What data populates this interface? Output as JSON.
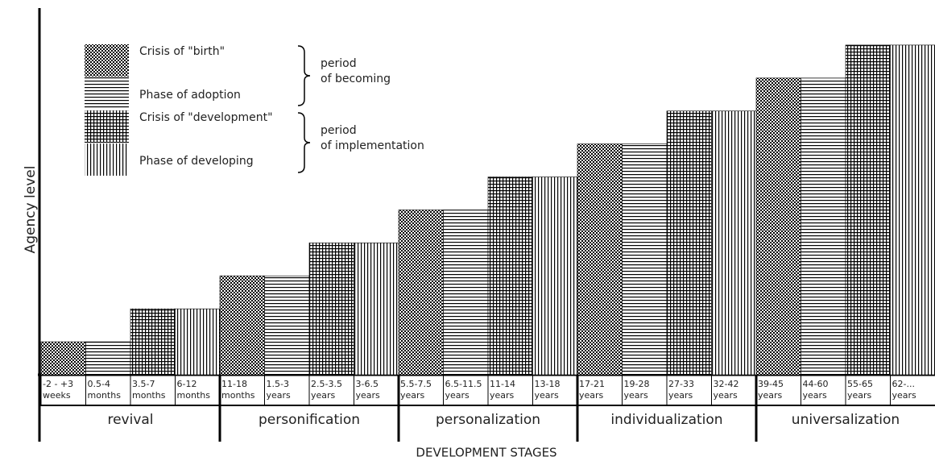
{
  "chart_data": {
    "type": "bar",
    "y_label": "Agency level",
    "x_label": "DEVELOPMENT STAGES",
    "ylim": [
      0,
      11
    ],
    "categories": [
      "-2 - +3\nweeks",
      "0.5-4\nmonths",
      "3.5-7\nmonths",
      "6-12\nmonths",
      "11-18\nmonths",
      "1.5-3\nyears",
      "2.5-3.5\nyears",
      "3-6.5\nyears",
      "5.5-7.5\nyears",
      "6.5-11.5\nyears",
      "11-14\nyears",
      "13-18\nyears",
      "17-21\nyears",
      "19-28\nyears",
      "27-33\nyears",
      "32-42\nyears",
      "39-45\nyears",
      "44-60\nyears",
      "55-65\nyears",
      "62-...\nyears"
    ],
    "series": [
      {
        "name": "Crisis of \"birth\"",
        "pattern": "checker",
        "values": [
          1,
          null,
          null,
          null,
          3,
          null,
          null,
          null,
          5,
          null,
          null,
          null,
          7,
          null,
          null,
          null,
          9,
          null,
          null,
          null
        ]
      },
      {
        "name": "Phase of adoption",
        "pattern": "horizontal",
        "values": [
          null,
          1,
          null,
          null,
          null,
          3,
          null,
          null,
          null,
          5,
          null,
          null,
          null,
          7,
          null,
          null,
          null,
          9,
          null,
          null
        ]
      },
      {
        "name": "Crisis of \"development\"",
        "pattern": "grid",
        "values": [
          null,
          null,
          2,
          null,
          null,
          null,
          4,
          null,
          null,
          null,
          6,
          null,
          null,
          null,
          8,
          null,
          null,
          null,
          10,
          null
        ]
      },
      {
        "name": "Phase of developing",
        "pattern": "vertical",
        "values": [
          null,
          null,
          null,
          2,
          null,
          null,
          null,
          4,
          null,
          null,
          null,
          6,
          null,
          null,
          null,
          8,
          null,
          null,
          null,
          10
        ]
      }
    ],
    "legend_groups": [
      {
        "label": "period\nof becoming",
        "series": [
          0,
          1
        ]
      },
      {
        "label": "period\nof implementation",
        "series": [
          2,
          3
        ]
      }
    ],
    "groups": [
      {
        "name": "revival",
        "count": 4
      },
      {
        "name": "personification",
        "count": 4
      },
      {
        "name": "personalization",
        "count": 4
      },
      {
        "name": "individualization",
        "count": 4
      },
      {
        "name": "universalization",
        "count": 4
      }
    ]
  }
}
